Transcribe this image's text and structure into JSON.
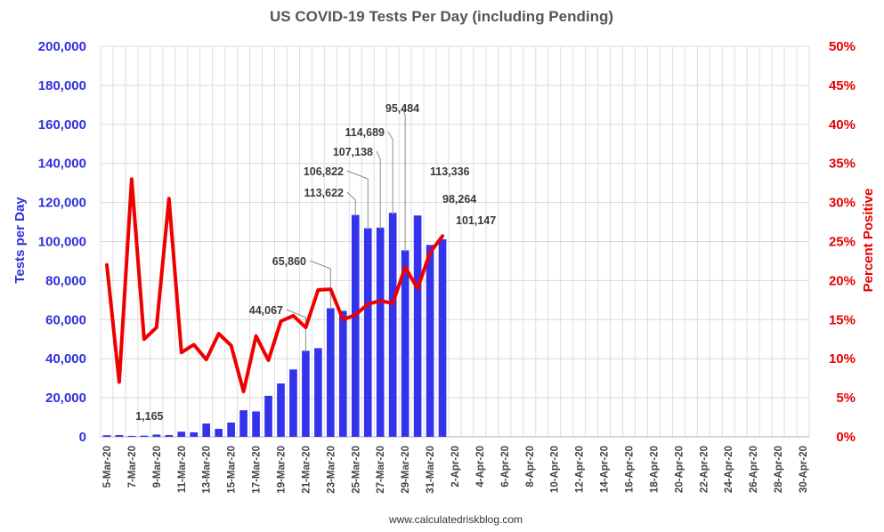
{
  "chart_data": {
    "type": "bar+line",
    "title": "US COVID-19 Tests Per Day (including Pending)",
    "ylabel_left": "Tests per Day",
    "ylabel_right": "Percent Positive",
    "source": "www.calculatedriskblog.com",
    "ylim_left": [
      0,
      200000
    ],
    "ylim_right": [
      0,
      50
    ],
    "left_ticks": [
      "0",
      "20,000",
      "40,000",
      "60,000",
      "80,000",
      "100,000",
      "120,000",
      "140,000",
      "160,000",
      "180,000",
      "200,000"
    ],
    "right_ticks": [
      "0%",
      "5%",
      "10%",
      "15%",
      "20%",
      "25%",
      "30%",
      "35%",
      "40%",
      "45%",
      "50%"
    ],
    "x_tick_labels": [
      "5-Mar-20",
      "7-Mar-20",
      "9-Mar-20",
      "11-Mar-20",
      "13-Mar-20",
      "15-Mar-20",
      "17-Mar-20",
      "19-Mar-20",
      "21-Mar-20",
      "23-Mar-20",
      "25-Mar-20",
      "27-Mar-20",
      "29-Mar-20",
      "31-Mar-20",
      "2-Apr-20",
      "4-Apr-20",
      "6-Apr-20",
      "8-Apr-20",
      "10-Apr-20",
      "12-Apr-20",
      "14-Apr-20",
      "16-Apr-20",
      "18-Apr-20",
      "20-Apr-20",
      "22-Apr-20",
      "24-Apr-20",
      "26-Apr-20",
      "28-Apr-20",
      "30-Apr-20"
    ],
    "num_days": 57,
    "series": [
      {
        "name": "Tests per Day",
        "type": "bar",
        "axis": "left",
        "color": "#3333ee",
        "values": [
          800,
          900,
          500,
          600,
          1165,
          900,
          2600,
          2300,
          6800,
          4100,
          7300,
          13600,
          13000,
          21000,
          27300,
          34500,
          44067,
          45400,
          65860,
          64500,
          113622,
          106822,
          107138,
          114689,
          95484,
          113336,
          98264,
          101147
        ]
      },
      {
        "name": "Percent Positive",
        "type": "line",
        "axis": "right",
        "color": "#ee0000",
        "values": [
          22,
          7,
          33,
          12.5,
          14,
          30.5,
          10.8,
          11.8,
          9.9,
          13.2,
          11.7,
          5.8,
          12.9,
          9.8,
          14.8,
          15.5,
          14,
          18.8,
          18.9,
          15,
          15.6,
          17,
          17.4,
          17.1,
          21.7,
          19,
          23.6,
          25.7
        ]
      }
    ],
    "data_labels": [
      {
        "text": "1,165",
        "day_index": 4
      },
      {
        "text": "44,067",
        "day_index": 16
      },
      {
        "text": "65,860",
        "day_index": 18
      },
      {
        "text": "113,622",
        "day_index": 20
      },
      {
        "text": "106,822",
        "day_index": 21
      },
      {
        "text": "107,138",
        "day_index": 22
      },
      {
        "text": "114,689",
        "day_index": 23
      },
      {
        "text": "95,484",
        "day_index": 24
      },
      {
        "text": "113,336",
        "day_index": 25
      },
      {
        "text": "98,264",
        "day_index": 26
      },
      {
        "text": "101,147",
        "day_index": 27
      }
    ]
  }
}
